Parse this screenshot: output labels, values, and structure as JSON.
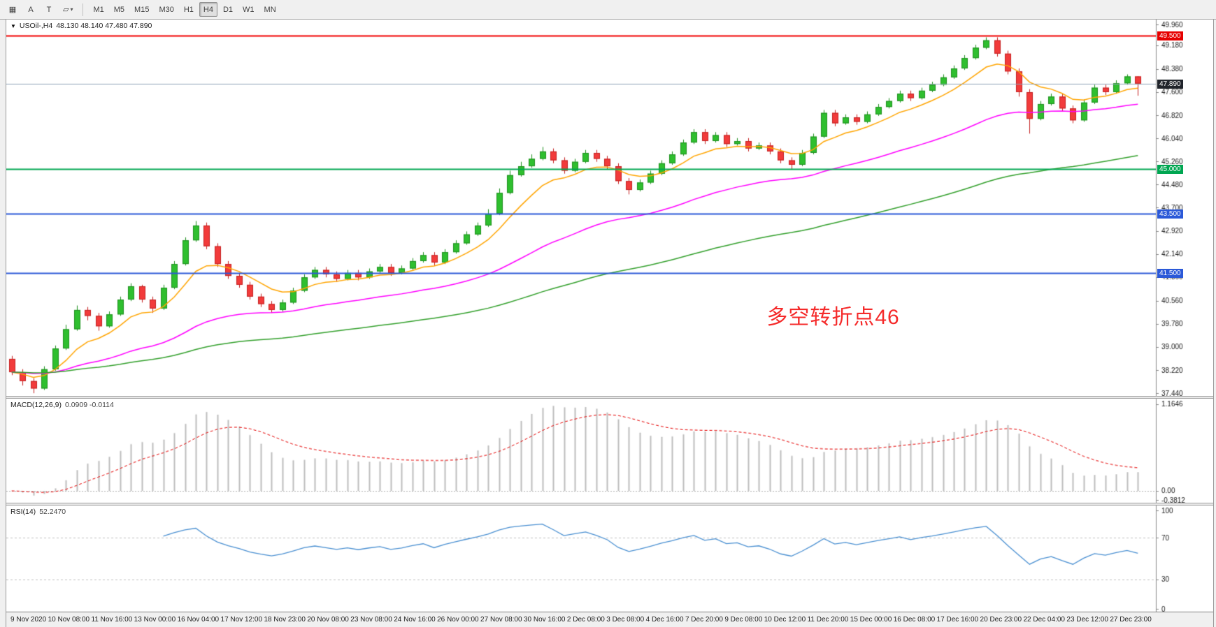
{
  "icons": {
    "symbol_dropdown": "▼"
  },
  "toolbar": {
    "left_buttons": [
      {
        "id": "chart-grid",
        "icon": "▦"
      },
      {
        "id": "text-annotation",
        "icon": "A"
      },
      {
        "id": "text-label",
        "icon": "T"
      },
      {
        "id": "draw-shapes",
        "icon": "▱",
        "caret": "▾"
      }
    ],
    "timeframes": [
      {
        "label": "M1",
        "active": false
      },
      {
        "label": "M5",
        "active": false
      },
      {
        "label": "M15",
        "active": false
      },
      {
        "label": "M30",
        "active": false
      },
      {
        "label": "H1",
        "active": false
      },
      {
        "label": "H4",
        "active": true
      },
      {
        "label": "D1",
        "active": false
      },
      {
        "label": "W1",
        "active": false
      },
      {
        "label": "MN",
        "active": false
      }
    ]
  },
  "chart": {
    "symbol_title": "USOil-,H4",
    "ohlc": "48.130 48.140 47.480 47.890",
    "annotation": {
      "text": "多空转折点46",
      "color": "#f52a2a"
    }
  },
  "macd": {
    "label": "MACD(12,26,9)",
    "values": "0.0909 -0.0114"
  },
  "rsi": {
    "label": "RSI(14)",
    "value": "52.2470"
  },
  "chart_data": [
    {
      "type": "candlestick",
      "symbol": "USOil-",
      "timeframe": "H4",
      "last_ohlc": {
        "open": "48.130",
        "high": "48.140",
        "low": "47.480",
        "close": "47.890"
      },
      "ylim": [
        37.35,
        50.05
      ],
      "y_ticks": [
        "49.960",
        "49.180",
        "48.380",
        "47.600",
        "46.820",
        "46.040",
        "45.260",
        "44.480",
        "43.700",
        "42.920",
        "42.140",
        "41.360",
        "40.560",
        "39.780",
        "39.000",
        "38.220",
        "37.440"
      ],
      "x_labels": [
        "9 Nov 2020",
        "10 Nov 08:00",
        "11 Nov 16:00",
        "13 Nov 00:00",
        "16 Nov 04:00",
        "17 Nov 12:00",
        "18 Nov 23:00",
        "20 Nov 08:00",
        "23 Nov 08:00",
        "24 Nov 16:00",
        "26 Nov 00:00",
        "27 Nov 08:00",
        "30 Nov 16:00",
        "2 Dec 08:00",
        "3 Dec 08:00",
        "4 Dec 16:00",
        "7 Dec 20:00",
        "9 Dec 08:00",
        "10 Dec 12:00",
        "11 Dec 20:00",
        "15 Dec 00:00",
        "16 Dec 08:00",
        "17 Dec 16:00",
        "20 Dec 23:00",
        "22 Dec 04:00",
        "23 Dec 12:00",
        "27 Dec 23:00"
      ],
      "up_color": "#2fbf2f",
      "down_color": "#f23b3b",
      "hlines": [
        {
          "price": 49.5,
          "label": "49.500",
          "color": "#f20000",
          "label_bg": "#e60000",
          "width": 2,
          "is_bid": false
        },
        {
          "price": 47.89,
          "label": "47.890",
          "color": "#8fa3b8",
          "label_bg": "#20242b",
          "width": 1,
          "is_bid": true
        },
        {
          "price": 45.0,
          "label": "45.000",
          "color": "#00a651",
          "label_bg": "#00a651",
          "width": 2,
          "is_bid": false
        },
        {
          "price": 43.5,
          "label": "43.500",
          "color": "#2b59d8",
          "label_bg": "#2b59d8",
          "width": 2,
          "is_bid": false
        },
        {
          "price": 41.5,
          "label": "41.500",
          "color": "#2b59d8",
          "label_bg": "#2b59d8",
          "width": 2,
          "is_bid": false
        }
      ],
      "moving_averages": [
        {
          "period": 8,
          "color": "#ffa500"
        },
        {
          "period": 34,
          "color": "#ff00ff"
        },
        {
          "period": 80,
          "color": "#33a02c"
        }
      ],
      "candles": [
        [
          38.6,
          38.7,
          38.05,
          38.15
        ],
        [
          38.15,
          38.25,
          37.7,
          37.85
        ],
        [
          37.85,
          37.95,
          37.44,
          37.6
        ],
        [
          37.6,
          38.35,
          37.55,
          38.25
        ],
        [
          38.25,
          39.05,
          38.2,
          38.95
        ],
        [
          38.95,
          39.75,
          38.9,
          39.6
        ],
        [
          39.6,
          40.4,
          39.55,
          40.25
        ],
        [
          40.25,
          40.35,
          39.9,
          40.05
        ],
        [
          40.05,
          40.15,
          39.55,
          39.7
        ],
        [
          39.7,
          40.2,
          39.65,
          40.1
        ],
        [
          40.1,
          40.7,
          40.05,
          40.6
        ],
        [
          40.6,
          41.15,
          40.55,
          41.05
        ],
        [
          41.05,
          41.1,
          40.5,
          40.6
        ],
        [
          40.6,
          40.7,
          40.15,
          40.3
        ],
        [
          40.3,
          41.1,
          40.25,
          41.0
        ],
        [
          41.0,
          41.9,
          40.95,
          41.8
        ],
        [
          41.8,
          42.7,
          41.75,
          42.6
        ],
        [
          42.6,
          43.25,
          42.55,
          43.1
        ],
        [
          43.1,
          43.2,
          42.3,
          42.4
        ],
        [
          42.4,
          42.5,
          41.7,
          41.8
        ],
        [
          41.8,
          41.9,
          41.3,
          41.4
        ],
        [
          41.4,
          41.5,
          41.0,
          41.1
        ],
        [
          41.1,
          41.2,
          40.6,
          40.7
        ],
        [
          40.7,
          40.8,
          40.35,
          40.45
        ],
        [
          40.45,
          40.55,
          40.15,
          40.25
        ],
        [
          40.25,
          40.6,
          40.2,
          40.5
        ],
        [
          40.5,
          41.0,
          40.45,
          40.9
        ],
        [
          40.9,
          41.45,
          40.85,
          41.35
        ],
        [
          41.35,
          41.7,
          41.3,
          41.6
        ],
        [
          41.6,
          41.7,
          41.35,
          41.45
        ],
        [
          41.45,
          41.55,
          41.2,
          41.3
        ],
        [
          41.3,
          41.6,
          41.25,
          41.5
        ],
        [
          41.5,
          41.6,
          41.25,
          41.35
        ],
        [
          41.35,
          41.65,
          41.3,
          41.55
        ],
        [
          41.55,
          41.8,
          41.5,
          41.7
        ],
        [
          41.7,
          41.8,
          41.4,
          41.5
        ],
        [
          41.5,
          41.75,
          41.45,
          41.65
        ],
        [
          41.65,
          42.0,
          41.6,
          41.9
        ],
        [
          41.9,
          42.2,
          41.85,
          42.1
        ],
        [
          42.1,
          42.2,
          41.75,
          41.85
        ],
        [
          41.85,
          42.3,
          41.8,
          42.2
        ],
        [
          42.2,
          42.6,
          42.15,
          42.5
        ],
        [
          42.5,
          42.9,
          42.45,
          42.8
        ],
        [
          42.8,
          43.2,
          42.75,
          43.1
        ],
        [
          43.1,
          43.65,
          43.05,
          43.5
        ],
        [
          43.5,
          44.35,
          43.45,
          44.2
        ],
        [
          44.2,
          44.95,
          44.15,
          44.8
        ],
        [
          44.8,
          45.25,
          44.75,
          45.1
        ],
        [
          45.1,
          45.5,
          45.05,
          45.35
        ],
        [
          45.35,
          45.75,
          45.3,
          45.6
        ],
        [
          45.6,
          45.7,
          45.2,
          45.3
        ],
        [
          45.3,
          45.4,
          44.85,
          44.95
        ],
        [
          44.95,
          45.35,
          44.9,
          45.25
        ],
        [
          45.25,
          45.65,
          45.2,
          45.55
        ],
        [
          45.55,
          45.65,
          45.25,
          45.35
        ],
        [
          45.35,
          45.45,
          45.0,
          45.1
        ],
        [
          45.1,
          45.2,
          44.5,
          44.6
        ],
        [
          44.6,
          44.7,
          44.15,
          44.3
        ],
        [
          44.3,
          44.65,
          44.25,
          44.55
        ],
        [
          44.55,
          44.95,
          44.5,
          44.85
        ],
        [
          44.85,
          45.3,
          44.8,
          45.2
        ],
        [
          45.2,
          45.6,
          45.15,
          45.5
        ],
        [
          45.5,
          46.0,
          45.45,
          45.9
        ],
        [
          45.9,
          46.35,
          45.85,
          46.25
        ],
        [
          46.25,
          46.35,
          45.85,
          45.95
        ],
        [
          45.95,
          46.25,
          45.9,
          46.15
        ],
        [
          46.15,
          46.25,
          45.75,
          45.85
        ],
        [
          45.85,
          46.05,
          45.8,
          45.95
        ],
        [
          45.95,
          46.05,
          45.6,
          45.7
        ],
        [
          45.7,
          45.9,
          45.65,
          45.8
        ],
        [
          45.8,
          45.9,
          45.5,
          45.6
        ],
        [
          45.6,
          45.7,
          45.2,
          45.3
        ],
        [
          45.3,
          45.4,
          45.0,
          45.15
        ],
        [
          45.15,
          45.65,
          45.1,
          45.55
        ],
        [
          45.55,
          46.2,
          45.5,
          46.1
        ],
        [
          46.1,
          47.0,
          46.05,
          46.9
        ],
        [
          46.9,
          47.0,
          46.45,
          46.55
        ],
        [
          46.55,
          46.85,
          46.5,
          46.75
        ],
        [
          46.75,
          46.85,
          46.5,
          46.6
        ],
        [
          46.6,
          46.95,
          46.55,
          46.85
        ],
        [
          46.85,
          47.2,
          46.8,
          47.1
        ],
        [
          47.1,
          47.4,
          47.05,
          47.3
        ],
        [
          47.3,
          47.65,
          47.25,
          47.55
        ],
        [
          47.55,
          47.65,
          47.3,
          47.4
        ],
        [
          47.4,
          47.75,
          47.35,
          47.65
        ],
        [
          47.65,
          47.95,
          47.6,
          47.85
        ],
        [
          47.85,
          48.2,
          47.8,
          48.1
        ],
        [
          48.1,
          48.5,
          48.05,
          48.4
        ],
        [
          48.4,
          48.85,
          48.35,
          48.75
        ],
        [
          48.75,
          49.2,
          48.7,
          49.1
        ],
        [
          49.1,
          49.45,
          49.05,
          49.35
        ],
        [
          49.35,
          49.45,
          48.8,
          48.9
        ],
        [
          48.9,
          49.0,
          48.2,
          48.3
        ],
        [
          48.3,
          48.4,
          47.45,
          47.6
        ],
        [
          47.6,
          47.7,
          46.2,
          46.7
        ],
        [
          46.7,
          47.3,
          46.65,
          47.2
        ],
        [
          47.2,
          47.55,
          47.15,
          47.45
        ],
        [
          47.45,
          47.55,
          46.95,
          47.05
        ],
        [
          47.05,
          47.15,
          46.55,
          46.65
        ],
        [
          46.65,
          47.35,
          46.6,
          47.25
        ],
        [
          47.25,
          47.85,
          47.2,
          47.75
        ],
        [
          47.75,
          47.85,
          47.5,
          47.6
        ],
        [
          47.6,
          48.0,
          47.55,
          47.9
        ],
        [
          47.9,
          48.2,
          47.85,
          48.13
        ],
        [
          48.13,
          48.14,
          47.48,
          47.89
        ]
      ]
    },
    {
      "type": "macd-histogram",
      "title": "MACD(12,26,9)",
      "values_text": "0.0909 -0.0114",
      "params": [
        12,
        26,
        9
      ],
      "y_ticks": [
        {
          "label": "1.1646",
          "value": 1.1646
        },
        {
          "label": "0.00",
          "value": 0
        },
        {
          "label": "-0.3812",
          "value": -0.3812
        }
      ],
      "bar_color": "#bdbdbd",
      "signal_color": "#e60000"
    },
    {
      "type": "rsi-line",
      "title": "RSI(14)",
      "value_text": "52.2470",
      "period": 14,
      "ylim": [
        0,
        100
      ],
      "levels": [
        70,
        30
      ],
      "y_ticks": [
        {
          "label": "100",
          "value": 100
        },
        {
          "label": "70",
          "value": 70
        },
        {
          "label": "30",
          "value": 30
        },
        {
          "label": "0",
          "value": 0
        }
      ],
      "line_color": "#4a90d2",
      "level_color": "#c0c0c0"
    }
  ]
}
